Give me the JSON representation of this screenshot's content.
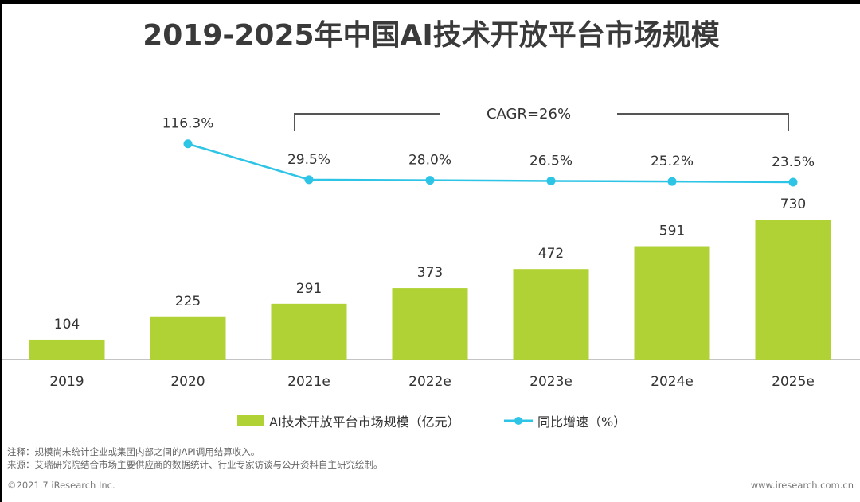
{
  "title": "2019-2025年中国AI技术开放平台市场规模",
  "chart_data": {
    "type": "bar+line",
    "title": "2019-2025年中国AI技术开放平台市场规模",
    "categories": [
      "2019",
      "2020",
      "2021e",
      "2022e",
      "2023e",
      "2024e",
      "2025e"
    ],
    "series": [
      {
        "name": "AI技术开放平台市场规模（亿元）",
        "type": "bar",
        "color": "#b0d235",
        "values": [
          104,
          225,
          291,
          373,
          472,
          591,
          730
        ]
      },
      {
        "name": "同比增速（%）",
        "type": "line",
        "color": "#2ec4e6",
        "values": [
          null,
          116.3,
          29.5,
          28.0,
          26.5,
          25.2,
          23.5
        ],
        "labels": [
          "",
          "116.3%",
          "29.5%",
          "28.0%",
          "26.5%",
          "25.2%",
          "23.5%"
        ]
      }
    ],
    "annotation": "CAGR=26%"
  },
  "notes": [
    "注释：规模尚未统计企业或集团内部之间的API调用结算收入。",
    "来源：艾瑞研究院结合市场主要供应商的数据统计、行业专家访谈与公开资料自主研究绘制。"
  ],
  "footer": {
    "copyright": "©2021.7 iResearch Inc.",
    "site": "www.iresearch.com.cn"
  }
}
